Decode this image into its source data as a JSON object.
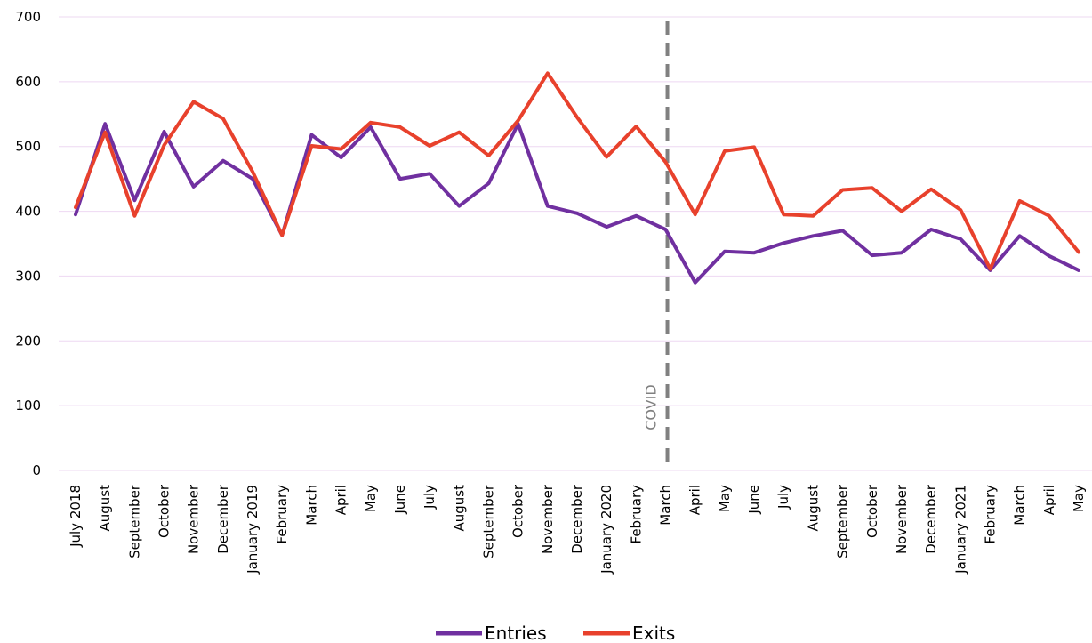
{
  "chart_data": {
    "type": "line",
    "categories": [
      "July 2018",
      "August",
      "September",
      "October",
      "November",
      "December",
      "January 2019",
      "February",
      "March",
      "April",
      "May",
      "June",
      "July",
      "August",
      "September",
      "October",
      "November",
      "December",
      "January 2020",
      "February",
      "March",
      "April",
      "May",
      "June",
      "July",
      "August",
      "September",
      "October",
      "November",
      "December",
      "January 2021",
      "February",
      "March",
      "April",
      "May"
    ],
    "series": [
      {
        "name": "Entries",
        "color": "#7030a0",
        "values": [
          395,
          535,
          417,
          523,
          438,
          478,
          450,
          363,
          518,
          483,
          530,
          450,
          458,
          408,
          443,
          535,
          408,
          397,
          376,
          393,
          372,
          290,
          338,
          336,
          351,
          362,
          370,
          332,
          336,
          372,
          357,
          309,
          362,
          331,
          309
        ]
      },
      {
        "name": "Exits",
        "color": "#e8412c",
        "values": [
          406,
          522,
          393,
          502,
          569,
          543,
          461,
          363,
          501,
          496,
          537,
          530,
          501,
          522,
          486,
          540,
          613,
          545,
          484,
          531,
          476,
          395,
          493,
          499,
          395,
          393,
          433,
          436,
          400,
          434,
          402,
          311,
          416,
          393,
          337
        ]
      }
    ],
    "yticks": [
      "0",
      "100",
      "200",
      "300",
      "400",
      "500",
      "600",
      "700"
    ],
    "ylim": [
      0,
      700
    ],
    "grid": true,
    "gridline_color": "#eed8f2",
    "legend_position": "bottom",
    "annotations": [
      {
        "text": "COVID",
        "at_category": "March",
        "at_index": 20,
        "style": "dashed-vertical",
        "color": "#808080"
      }
    ]
  }
}
